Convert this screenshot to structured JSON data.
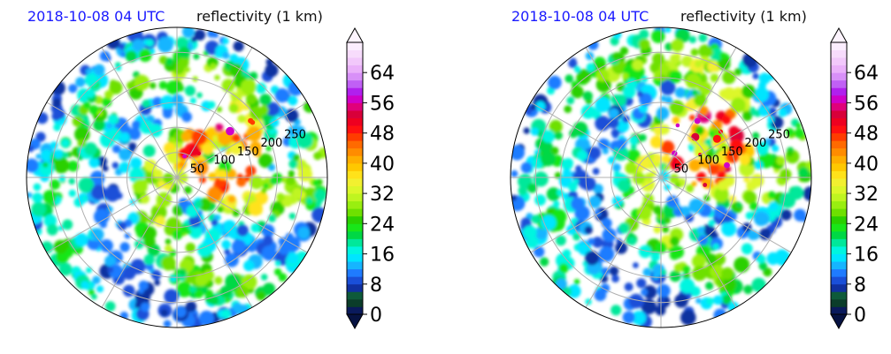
{
  "chart_data": [
    {
      "type": "heatmap",
      "subtype": "polar radar PPI",
      "time_label": "2018-10-08 04 UTC",
      "variable_label": "reflectivity (1 km)",
      "range_ring_labels": [
        "50",
        "100",
        "150",
        "200",
        "250"
      ],
      "range_rings_km": [
        50,
        100,
        150,
        200,
        250
      ],
      "colorbar": {
        "ticks": [
          "0",
          "8",
          "16",
          "24",
          "32",
          "40",
          "48",
          "56",
          "64"
        ],
        "range": [
          0,
          72
        ],
        "step": 2,
        "extend": "both"
      },
      "storm": {
        "center_azimuth_deg": 65,
        "center_range_km": 95,
        "band_azimuth_deg": 150
      }
    },
    {
      "type": "heatmap",
      "subtype": "polar radar PPI",
      "time_label": "2018-10-08 04 UTC",
      "variable_label": "reflectivity (1 km)",
      "range_ring_labels": [
        "50",
        "100",
        "150",
        "200",
        "250"
      ],
      "range_rings_km": [
        50,
        100,
        150,
        200,
        250
      ],
      "colorbar": {
        "ticks": [
          "0",
          "8",
          "16",
          "24",
          "32",
          "40",
          "48",
          "56",
          "64"
        ],
        "range": [
          0,
          72
        ],
        "step": 2,
        "extend": "both"
      },
      "storm": {
        "center_azimuth_deg": 55,
        "center_range_km": 110,
        "band_azimuth_deg": 160
      }
    }
  ],
  "colors": {
    "axis": "#000000",
    "grid": "#b0b0b0",
    "time_label": "#1a1aff"
  }
}
